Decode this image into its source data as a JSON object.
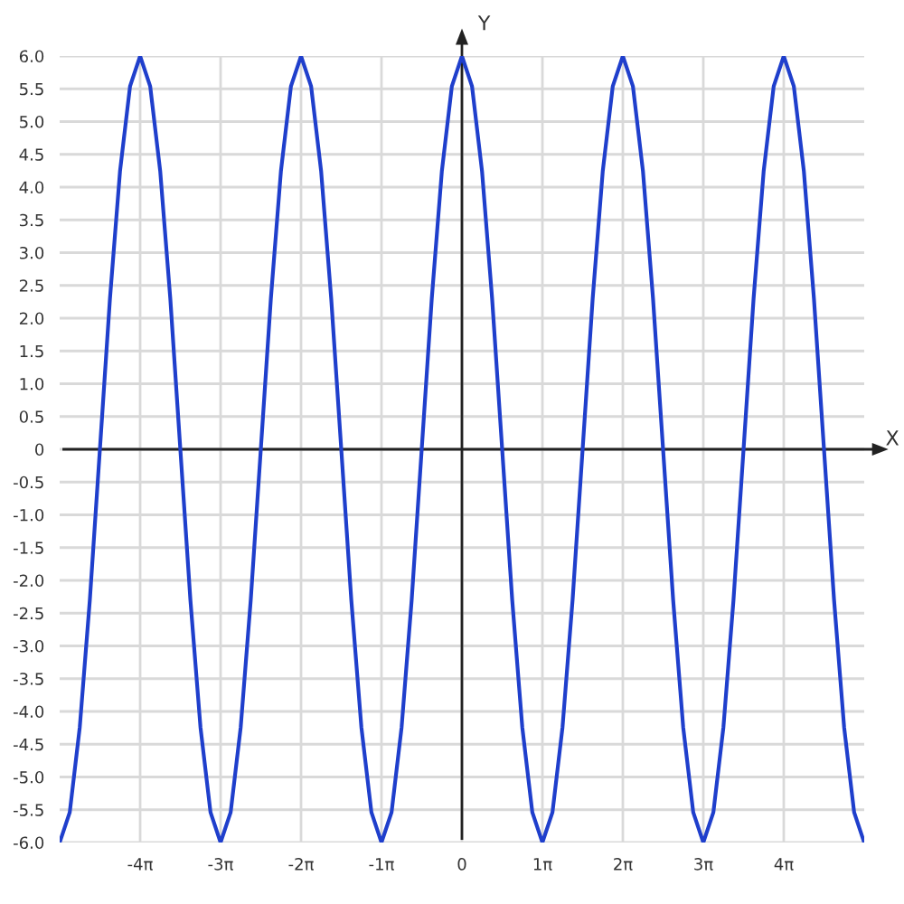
{
  "chart_data": {
    "type": "line",
    "xlabel": "X",
    "ylabel": "Y",
    "x": [
      -15.708,
      -15.315,
      -14.923,
      -14.53,
      -14.137,
      -13.744,
      -13.352,
      -12.959,
      -12.566,
      -12.174,
      -11.781,
      -11.388,
      -10.996,
      -10.603,
      -10.21,
      -9.817,
      -9.425,
      -9.032,
      -8.639,
      -8.247,
      -7.854,
      -7.461,
      -7.069,
      -6.676,
      -6.283,
      -5.89,
      -5.498,
      -5.105,
      -4.712,
      -4.32,
      -3.927,
      -3.534,
      -3.142,
      -2.749,
      -2.356,
      -1.963,
      -1.571,
      -1.178,
      -0.785,
      -0.393,
      0,
      0.393,
      0.785,
      1.178,
      1.571,
      1.963,
      2.356,
      2.749,
      3.142,
      3.534,
      3.927,
      4.32,
      4.712,
      5.105,
      5.498,
      5.89,
      6.283,
      6.676,
      7.069,
      7.461,
      7.854,
      8.247,
      8.639,
      9.032,
      9.425,
      9.817,
      10.21,
      10.603,
      10.996,
      11.388,
      11.781,
      12.174,
      12.566,
      12.959,
      13.352,
      13.744,
      14.137,
      14.53,
      14.923,
      15.315,
      15.708
    ],
    "series": [
      {
        "color": "#1f3fcc",
        "values": [
          -6,
          -5.54,
          -4.24,
          -2.3,
          0,
          2.3,
          4.24,
          5.54,
          6,
          5.54,
          4.24,
          2.3,
          0,
          -2.3,
          -4.24,
          -5.54,
          -6,
          -5.54,
          -4.24,
          -2.3,
          0,
          2.3,
          4.24,
          5.54,
          6,
          5.54,
          4.24,
          2.3,
          0,
          -2.3,
          -4.24,
          -5.54,
          -6,
          -5.54,
          -4.24,
          -2.3,
          0,
          2.3,
          4.24,
          5.54,
          6,
          5.54,
          4.24,
          2.3,
          0,
          -2.3,
          -4.24,
          -5.54,
          -6,
          -5.54,
          -4.24,
          -2.3,
          0,
          2.3,
          4.24,
          5.54,
          6,
          5.54,
          4.24,
          2.3,
          0,
          -2.3,
          -4.24,
          -5.54,
          -6,
          -5.54,
          -4.24,
          -2.3,
          0,
          2.3,
          4.24,
          5.54,
          6,
          5.54,
          4.24,
          2.3,
          0,
          -2.3,
          -4.24,
          -5.54,
          -6
        ]
      }
    ],
    "xlim": [
      -15.708,
      15.708
    ],
    "ylim": [
      -6,
      6
    ],
    "xticks": [
      {
        "value": -12.566,
        "label": "-4π"
      },
      {
        "value": -9.425,
        "label": "-3π"
      },
      {
        "value": -6.283,
        "label": "-2π"
      },
      {
        "value": -3.142,
        "label": "-1π"
      },
      0,
      {
        "value": 3.142,
        "label": "1π"
      },
      {
        "value": 6.283,
        "label": "2π"
      },
      {
        "value": 9.425,
        "label": "3π"
      },
      {
        "value": 12.566,
        "label": "4π"
      }
    ],
    "yticks": [
      {
        "value": -6,
        "label": "-6.0"
      },
      {
        "value": -5.5,
        "label": "-5.5"
      },
      {
        "value": -5,
        "label": "-5.0"
      },
      {
        "value": -4.5,
        "label": "-4.5"
      },
      {
        "value": -4,
        "label": "-4.0"
      },
      {
        "value": -3.5,
        "label": "-3.5"
      },
      {
        "value": -3,
        "label": "-3.0"
      },
      {
        "value": -2.5,
        "label": "-2.5"
      },
      {
        "value": -2,
        "label": "-2.0"
      },
      {
        "value": -1.5,
        "label": "-1.5"
      },
      {
        "value": -1,
        "label": "-1.0"
      },
      {
        "value": -0.5,
        "label": "-0.5"
      },
      0,
      {
        "value": 0.5,
        "label": "0.5"
      },
      {
        "value": 1,
        "label": "1.0"
      },
      {
        "value": 1.5,
        "label": "1.5"
      },
      {
        "value": 2,
        "label": "2.0"
      },
      {
        "value": 2.5,
        "label": "2.5"
      },
      {
        "value": 3,
        "label": "3.0"
      },
      {
        "value": 3.5,
        "label": "3.5"
      },
      {
        "value": 4,
        "label": "4.0"
      },
      {
        "value": 4.5,
        "label": "4.5"
      },
      {
        "value": 5,
        "label": "5.0"
      },
      {
        "value": 5.5,
        "label": "5.5"
      },
      {
        "value": 6,
        "label": "6.0"
      }
    ],
    "grid": true,
    "marker": "none",
    "line_style": "solid",
    "legend": false
  }
}
